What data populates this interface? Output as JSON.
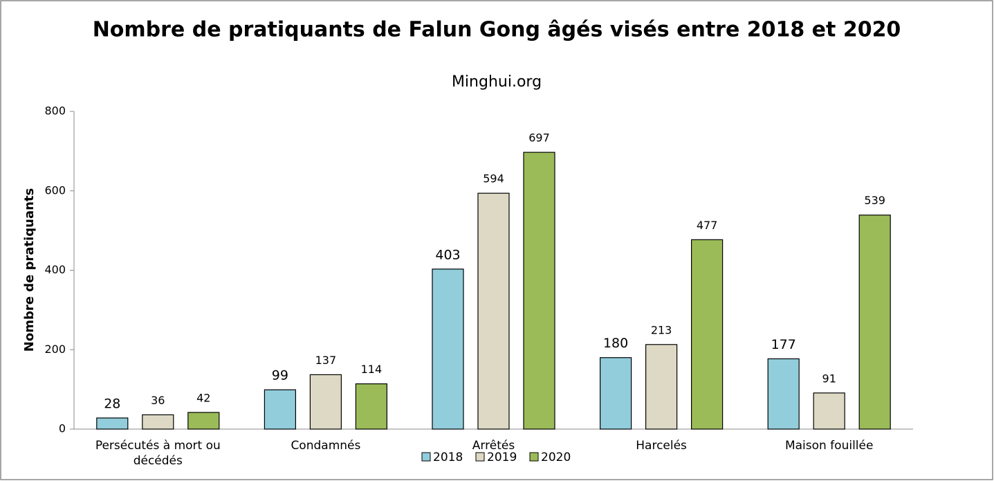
{
  "chart_data": {
    "type": "bar",
    "title": "Nombre de pratiquants de Falun Gong âgés visés entre 2018 et 2020",
    "subtitle": "Minghui.org",
    "y_label": "Nombre de pratiquants",
    "categories": [
      "Persécutés à mort ou décédés",
      "Condamnés",
      "Arrêtés",
      "Harcelés",
      "Maison fouillée"
    ],
    "series": [
      {
        "name": "2018",
        "color": "#92cddc",
        "values": [
          28,
          99,
          403,
          180,
          177
        ]
      },
      {
        "name": "2019",
        "color": "#ddd9c4",
        "values": [
          36,
          137,
          594,
          213,
          91
        ]
      },
      {
        "name": "2020",
        "color": "#9bbb59",
        "values": [
          42,
          114,
          697,
          477,
          539
        ]
      }
    ],
    "ylim": [
      0,
      800
    ],
    "yticks": [
      0,
      200,
      400,
      600,
      800
    ],
    "legend": "bottom"
  }
}
